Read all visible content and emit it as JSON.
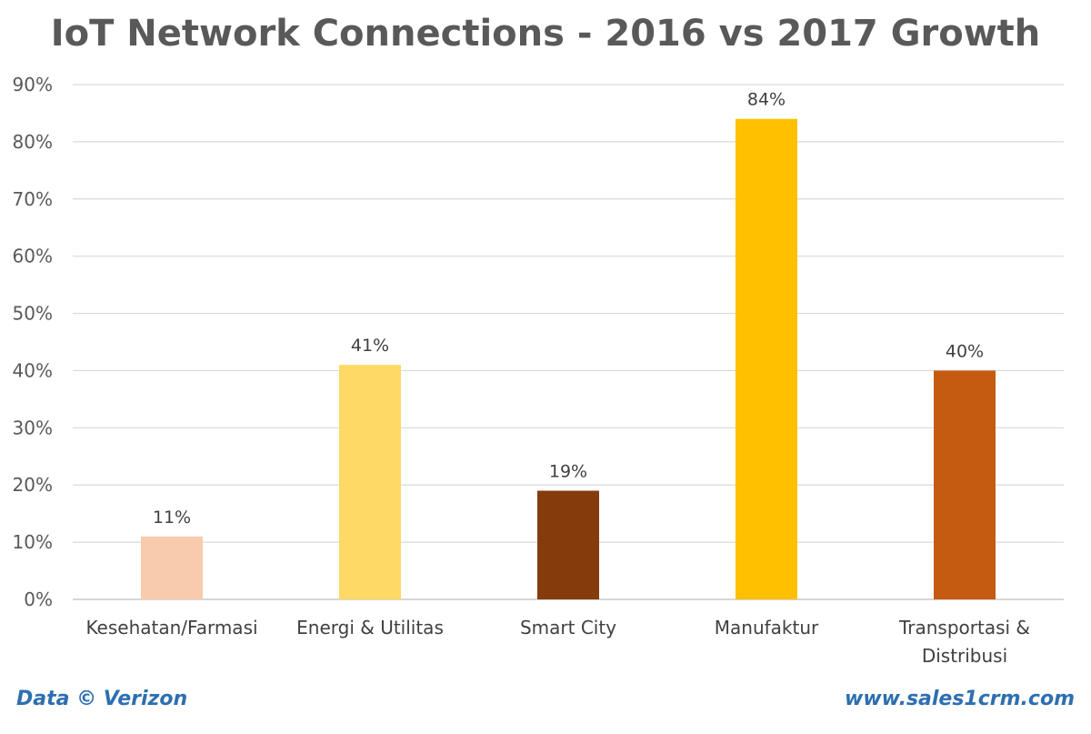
{
  "chart_data": {
    "type": "bar",
    "title": "IoT Network Connections - 2016 vs 2017 Growth",
    "categories": [
      [
        "Kesehatan/Farmasi"
      ],
      [
        "Energi & Utilitas"
      ],
      [
        "Smart City"
      ],
      [
        "Manufaktur"
      ],
      [
        "Transportasi &",
        "Distribusi"
      ]
    ],
    "values": [
      11,
      41,
      19,
      84,
      40
    ],
    "data_labels": [
      "11%",
      "41%",
      "19%",
      "84%",
      "40%"
    ],
    "colors": [
      "#f8cbad",
      "#ffd966",
      "#843c0c",
      "#ffc000",
      "#c55a11"
    ],
    "y_ticks": [
      "0%",
      "10%",
      "20%",
      "30%",
      "40%",
      "50%",
      "60%",
      "70%",
      "80%",
      "90%"
    ],
    "ylim": [
      0,
      90
    ],
    "grid": true,
    "legend": "none"
  },
  "footer": {
    "source": "Data © Verizon",
    "site": "www.sales1crm.com"
  }
}
